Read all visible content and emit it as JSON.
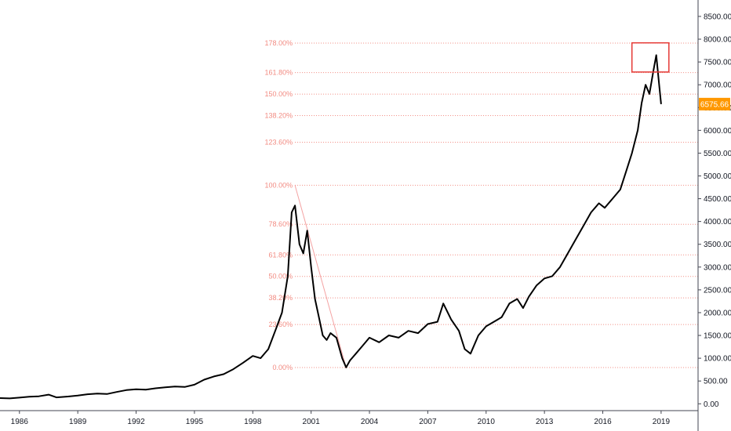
{
  "chart_data": {
    "type": "line",
    "x_ticks": [
      "1986",
      "1989",
      "1992",
      "1995",
      "1998",
      "2001",
      "2004",
      "2007",
      "2010",
      "2013",
      "2016",
      "2019"
    ],
    "y_ticks": [
      "0.00",
      "500.00",
      "1000.00",
      "1500.00",
      "2000.00",
      "2500.00",
      "3000.00",
      "3500.00",
      "4000.00",
      "4500.00",
      "5000.00",
      "5500.00",
      "6000.00",
      "6500.00",
      "7000.00",
      "7500.00",
      "8000.00",
      "8500.00"
    ],
    "xlim": [
      1985.0,
      2020.9
    ],
    "ylim": [
      -150,
      8860
    ],
    "last_price_label": "6575.66",
    "last_price": 6575.66,
    "fib_levels": [
      {
        "label": "0.00%",
        "value": 795
      },
      {
        "label": "23.60%",
        "value": 1739
      },
      {
        "label": "38.20%",
        "value": 2323
      },
      {
        "label": "50.00%",
        "value": 2795
      },
      {
        "label": "61.80%",
        "value": 3267
      },
      {
        "label": "78.60%",
        "value": 3939
      },
      {
        "label": "100.00%",
        "value": 4795
      },
      {
        "label": "123.60%",
        "value": 5739
      },
      {
        "label": "138.20%",
        "value": 6323
      },
      {
        "label": "150.00%",
        "value": 6795
      },
      {
        "label": "161.80%",
        "value": 7267
      },
      {
        "label": "178.00%",
        "value": 7915
      }
    ],
    "fib_trend_line": {
      "start": [
        2000.17,
        4795
      ],
      "end": [
        2002.8,
        795
      ]
    },
    "highlight_box": {
      "x": [
        2017.5,
        2019.4
      ],
      "y": [
        7280,
        7920
      ]
    },
    "series": [
      {
        "color": "#000000",
        "points": [
          [
            1985.0,
            125
          ],
          [
            1985.5,
            118
          ],
          [
            1986.0,
            135
          ],
          [
            1986.5,
            155
          ],
          [
            1987.0,
            165
          ],
          [
            1987.5,
            200
          ],
          [
            1987.9,
            140
          ],
          [
            1988.5,
            160
          ],
          [
            1989.0,
            180
          ],
          [
            1989.5,
            210
          ],
          [
            1990.0,
            225
          ],
          [
            1990.5,
            215
          ],
          [
            1991.0,
            260
          ],
          [
            1991.5,
            300
          ],
          [
            1992.0,
            320
          ],
          [
            1992.5,
            310
          ],
          [
            1993.0,
            340
          ],
          [
            1993.5,
            360
          ],
          [
            1994.0,
            380
          ],
          [
            1994.5,
            370
          ],
          [
            1995.0,
            420
          ],
          [
            1995.5,
            530
          ],
          [
            1996.0,
            600
          ],
          [
            1996.5,
            650
          ],
          [
            1997.0,
            760
          ],
          [
            1997.5,
            900
          ],
          [
            1998.0,
            1050
          ],
          [
            1998.4,
            1000
          ],
          [
            1998.8,
            1200
          ],
          [
            1999.2,
            1650
          ],
          [
            1999.5,
            2000
          ],
          [
            1999.8,
            2800
          ],
          [
            2000.0,
            4200
          ],
          [
            2000.17,
            4350
          ],
          [
            2000.4,
            3500
          ],
          [
            2000.6,
            3300
          ],
          [
            2000.8,
            3800
          ],
          [
            2001.0,
            3000
          ],
          [
            2001.2,
            2300
          ],
          [
            2001.4,
            1900
          ],
          [
            2001.6,
            1500
          ],
          [
            2001.8,
            1400
          ],
          [
            2002.0,
            1550
          ],
          [
            2002.3,
            1450
          ],
          [
            2002.6,
            1000
          ],
          [
            2002.8,
            800
          ],
          [
            2003.0,
            950
          ],
          [
            2003.3,
            1100
          ],
          [
            2003.6,
            1250
          ],
          [
            2004.0,
            1450
          ],
          [
            2004.5,
            1350
          ],
          [
            2005.0,
            1500
          ],
          [
            2005.5,
            1450
          ],
          [
            2006.0,
            1600
          ],
          [
            2006.5,
            1550
          ],
          [
            2007.0,
            1750
          ],
          [
            2007.5,
            1800
          ],
          [
            2007.8,
            2200
          ],
          [
            2008.2,
            1850
          ],
          [
            2008.6,
            1600
          ],
          [
            2008.9,
            1200
          ],
          [
            2009.2,
            1100
          ],
          [
            2009.6,
            1500
          ],
          [
            2010.0,
            1700
          ],
          [
            2010.4,
            1800
          ],
          [
            2010.8,
            1900
          ],
          [
            2011.2,
            2200
          ],
          [
            2011.6,
            2300
          ],
          [
            2011.9,
            2100
          ],
          [
            2012.2,
            2350
          ],
          [
            2012.6,
            2600
          ],
          [
            2013.0,
            2750
          ],
          [
            2013.4,
            2800
          ],
          [
            2013.8,
            3000
          ],
          [
            2014.2,
            3300
          ],
          [
            2014.6,
            3600
          ],
          [
            2015.0,
            3900
          ],
          [
            2015.4,
            4200
          ],
          [
            2015.8,
            4400
          ],
          [
            2016.1,
            4300
          ],
          [
            2016.5,
            4500
          ],
          [
            2016.9,
            4700
          ],
          [
            2017.2,
            5100
          ],
          [
            2017.5,
            5500
          ],
          [
            2017.8,
            6000
          ],
          [
            2018.0,
            6600
          ],
          [
            2018.2,
            7000
          ],
          [
            2018.4,
            6800
          ],
          [
            2018.6,
            7300
          ],
          [
            2018.75,
            7650
          ],
          [
            2018.9,
            7000
          ],
          [
            2019.0,
            6575.66
          ]
        ]
      }
    ]
  }
}
